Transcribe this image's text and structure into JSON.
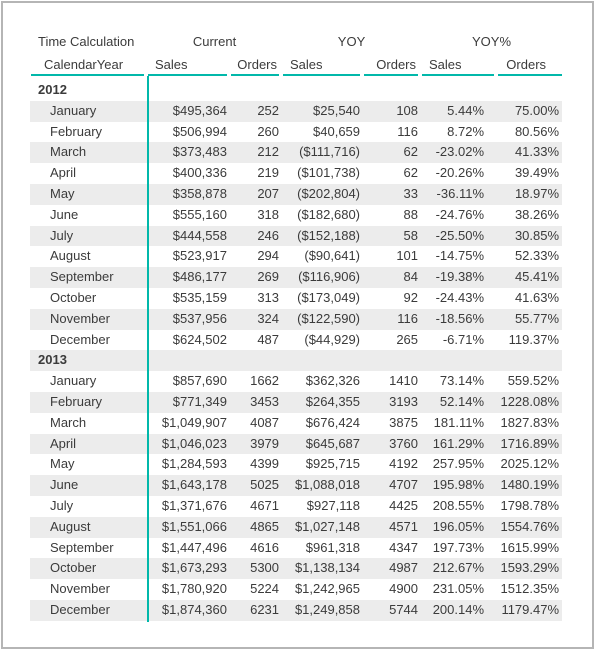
{
  "colors": {
    "accent_teal": "#01B8AA",
    "row_stripe": "#ECECEC",
    "text": "#3b3b3b",
    "frame_border": "#b5b5b5"
  },
  "chart_data": {
    "type": "table",
    "corner_headers": [
      "Time Calculation",
      "CalendarYear"
    ],
    "measure_groups": [
      "Current",
      "YOY",
      "YOY%"
    ],
    "sub_columns": [
      "Sales",
      "Orders"
    ],
    "column_keys": [
      "current_sales",
      "current_orders",
      "yoy_sales",
      "yoy_orders",
      "yoy_pct_sales",
      "yoy_pct_orders"
    ],
    "groups": [
      {
        "year": "2012",
        "rows": [
          {
            "month": "January",
            "cells": [
              "$495,364",
              "252",
              "$25,540",
              "108",
              "5.44%",
              "75.00%"
            ]
          },
          {
            "month": "February",
            "cells": [
              "$506,994",
              "260",
              "$40,659",
              "116",
              "8.72%",
              "80.56%"
            ]
          },
          {
            "month": "March",
            "cells": [
              "$373,483",
              "212",
              "($111,716)",
              "62",
              "-23.02%",
              "41.33%"
            ]
          },
          {
            "month": "April",
            "cells": [
              "$400,336",
              "219",
              "($101,738)",
              "62",
              "-20.26%",
              "39.49%"
            ]
          },
          {
            "month": "May",
            "cells": [
              "$358,878",
              "207",
              "($202,804)",
              "33",
              "-36.11%",
              "18.97%"
            ]
          },
          {
            "month": "June",
            "cells": [
              "$555,160",
              "318",
              "($182,680)",
              "88",
              "-24.76%",
              "38.26%"
            ]
          },
          {
            "month": "July",
            "cells": [
              "$444,558",
              "246",
              "($152,188)",
              "58",
              "-25.50%",
              "30.85%"
            ]
          },
          {
            "month": "August",
            "cells": [
              "$523,917",
              "294",
              "($90,641)",
              "101",
              "-14.75%",
              "52.33%"
            ]
          },
          {
            "month": "September",
            "cells": [
              "$486,177",
              "269",
              "($116,906)",
              "84",
              "-19.38%",
              "45.41%"
            ]
          },
          {
            "month": "October",
            "cells": [
              "$535,159",
              "313",
              "($173,049)",
              "92",
              "-24.43%",
              "41.63%"
            ]
          },
          {
            "month": "November",
            "cells": [
              "$537,956",
              "324",
              "($122,590)",
              "116",
              "-18.56%",
              "55.77%"
            ]
          },
          {
            "month": "December",
            "cells": [
              "$624,502",
              "487",
              "($44,929)",
              "265",
              "-6.71%",
              "119.37%"
            ]
          }
        ]
      },
      {
        "year": "2013",
        "rows": [
          {
            "month": "January",
            "cells": [
              "$857,690",
              "1662",
              "$362,326",
              "1410",
              "73.14%",
              "559.52%"
            ]
          },
          {
            "month": "February",
            "cells": [
              "$771,349",
              "3453",
              "$264,355",
              "3193",
              "52.14%",
              "1228.08%"
            ]
          },
          {
            "month": "March",
            "cells": [
              "$1,049,907",
              "4087",
              "$676,424",
              "3875",
              "181.11%",
              "1827.83%"
            ]
          },
          {
            "month": "April",
            "cells": [
              "$1,046,023",
              "3979",
              "$645,687",
              "3760",
              "161.29%",
              "1716.89%"
            ]
          },
          {
            "month": "May",
            "cells": [
              "$1,284,593",
              "4399",
              "$925,715",
              "4192",
              "257.95%",
              "2025.12%"
            ]
          },
          {
            "month": "June",
            "cells": [
              "$1,643,178",
              "5025",
              "$1,088,018",
              "4707",
              "195.98%",
              "1480.19%"
            ]
          },
          {
            "month": "July",
            "cells": [
              "$1,371,676",
              "4671",
              "$927,118",
              "4425",
              "208.55%",
              "1798.78%"
            ]
          },
          {
            "month": "August",
            "cells": [
              "$1,551,066",
              "4865",
              "$1,027,148",
              "4571",
              "196.05%",
              "1554.76%"
            ]
          },
          {
            "month": "September",
            "cells": [
              "$1,447,496",
              "4616",
              "$961,318",
              "4347",
              "197.73%",
              "1615.99%"
            ]
          },
          {
            "month": "October",
            "cells": [
              "$1,673,293",
              "5300",
              "$1,138,134",
              "4987",
              "212.67%",
              "1593.29%"
            ]
          },
          {
            "month": "November",
            "cells": [
              "$1,780,920",
              "5224",
              "$1,242,965",
              "4900",
              "231.05%",
              "1512.35%"
            ]
          },
          {
            "month": "December",
            "cells": [
              "$1,874,360",
              "6231",
              "$1,249,858",
              "5744",
              "200.14%",
              "1179.47%"
            ]
          }
        ]
      }
    ]
  }
}
